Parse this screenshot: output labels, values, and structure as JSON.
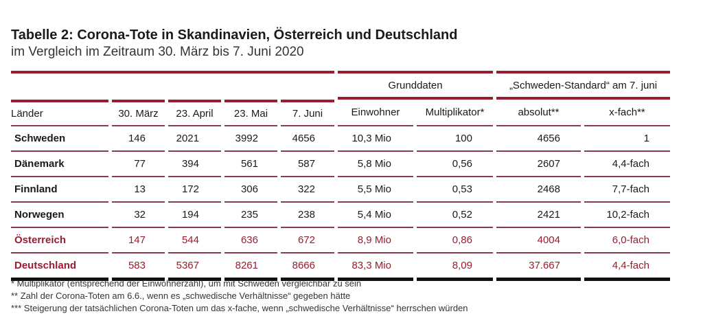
{
  "title": "Tabelle 2: Corona-Tote in Skandinavien, Österreich und Deutschland",
  "subtitle": "im Vergleich im Zeitraum 30. März bis 7. Juni 2020",
  "accent_color": "#9b1b30",
  "group_headers": {
    "grunddaten": "Grunddaten",
    "standard": "„Schweden-Standard“ am 7. juni"
  },
  "columns": [
    "Länder",
    "30. März",
    "23. April",
    "23. Mai",
    "7. Juni",
    "Einwohner",
    "Multiplikator*",
    "absolut**",
    "x-fach**"
  ],
  "rows": [
    [
      "Schweden",
      "146",
      "2021",
      "3992",
      "4656",
      "10,3 Mio",
      "100",
      "4656",
      "1"
    ],
    [
      "Dänemark",
      "77",
      "394",
      "561",
      "587",
      "5,8 Mio",
      "0,56",
      "2607",
      "4,4-fach"
    ],
    [
      "Finnland",
      "13",
      "172",
      "306",
      "322",
      "5,5 Mio",
      "0,53",
      "2468",
      "7,7-fach"
    ],
    [
      "Norwegen",
      "32",
      "194",
      "235",
      "238",
      "5,4 Mio",
      "0,52",
      "2421",
      "10,2-fach"
    ],
    [
      "Österreich",
      "147",
      "544",
      "636",
      "672",
      "8,9 Mio",
      "0,86",
      "4004",
      "6,0-fach"
    ],
    [
      "Deutschland",
      "583",
      "5367",
      "8261",
      "8666",
      "83,3 Mio",
      "8,09",
      "37.667",
      "4,4-fach"
    ]
  ],
  "highlighted_rows": [
    "Österreich",
    "Deutschland"
  ],
  "footnotes": [
    "* Multiplikator (entsprechend der Einwohnerzahl), um mit Schweden vergleichbar zu sein",
    "** Zahl der Corona-Toten am 6.6., wenn es „schwedische Verhältnisse“ gegeben hätte",
    "*** Steigerung der tatsächlichen Corona-Toten um das x-fache, wenn „schwedische Verhältnisse“ herrschen würden"
  ]
}
